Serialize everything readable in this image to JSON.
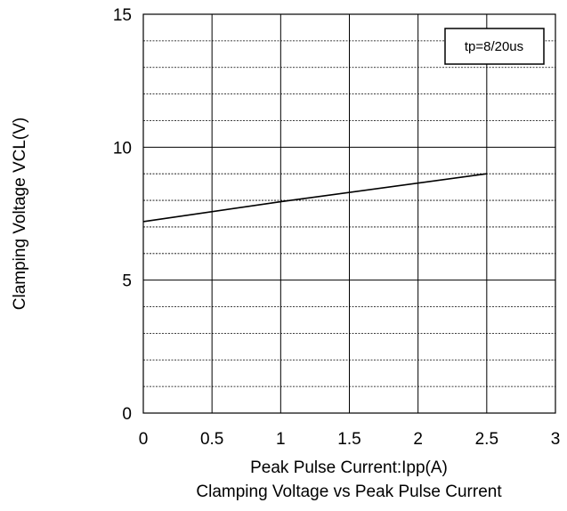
{
  "chart_data": {
    "type": "line",
    "title": "Clamping Voltage vs Peak Pulse Current",
    "xlabel": "Peak Pulse Current:Ipp(A)",
    "ylabel": "Clamping Voltage VCL(V)",
    "xlim": [
      0,
      3
    ],
    "ylim": [
      0,
      15
    ],
    "x_ticks": [
      0,
      0.5,
      1,
      1.5,
      2,
      2.5,
      3
    ],
    "x_tick_labels": [
      "0",
      "0.5",
      "1",
      "1.5",
      "2",
      "2.5",
      "3"
    ],
    "y_ticks": [
      0,
      5,
      10,
      15
    ],
    "y_tick_labels": [
      "0",
      "5",
      "10",
      "15"
    ],
    "minor_y_step": 1,
    "grid": {
      "vertical": true,
      "horizontal_major": true,
      "horizontal_minor": true
    },
    "annotation": "tp=8/20us",
    "annotation_position": "top-right",
    "series": [
      {
        "x": [
          0,
          1,
          2.5
        ],
        "y": [
          7.2,
          7.95,
          9.0
        ],
        "color": "#000000"
      }
    ]
  }
}
